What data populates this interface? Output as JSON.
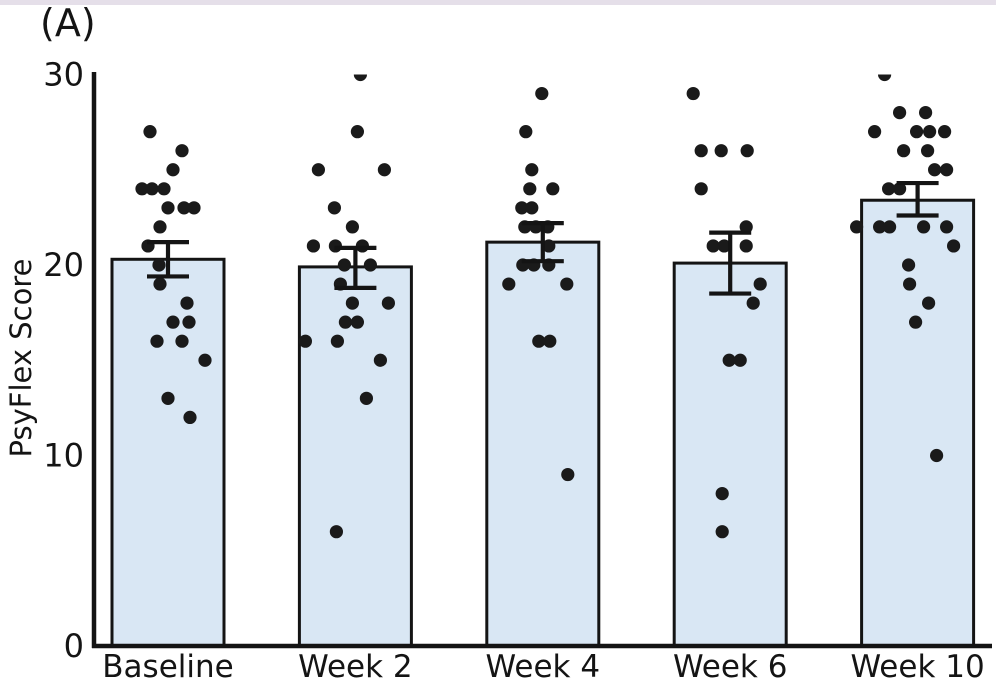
{
  "page": {
    "panel_label": "(A)"
  },
  "colors": {
    "bar_fill": "#d9e7f4",
    "bar_edge": "#141414",
    "dot": "#1a1a1a",
    "axis": "#141414",
    "text": "#141414",
    "top_strip": "#e5dfe9"
  },
  "chart_data": {
    "type": "bar",
    "subtype": "bar-with-jittered-scatter-and-error-bars",
    "title": "",
    "panel_label": "(A)",
    "xlabel": "",
    "ylabel": "PsyFlex Score",
    "ylim": [
      0,
      30
    ],
    "yticks": [
      "0",
      "10",
      "20",
      "30"
    ],
    "ytick_values": [
      0,
      10,
      20,
      30
    ],
    "grid": false,
    "legend": "none",
    "categories": [
      "Baseline",
      "Week 2",
      "Week 4",
      "Week 6",
      "Week 10"
    ],
    "series": [
      {
        "name": "mean",
        "values": [
          20.3,
          19.9,
          21.2,
          20.1,
          23.4
        ]
      }
    ],
    "error_bars": [
      {
        "lower": 19.4,
        "upper": 21.2
      },
      {
        "lower": 18.8,
        "upper": 20.9
      },
      {
        "lower": 20.2,
        "upper": 22.2
      },
      {
        "lower": 18.5,
        "upper": 21.7
      },
      {
        "lower": 22.6,
        "upper": 24.3
      }
    ],
    "points": [
      {
        "group": "Baseline",
        "pts": [
          [
            -18,
            27
          ],
          [
            14,
            26
          ],
          [
            5,
            25
          ],
          [
            -26,
            24
          ],
          [
            -16,
            24
          ],
          [
            -4,
            24
          ],
          [
            0,
            23
          ],
          [
            16,
            23
          ],
          [
            26,
            23
          ],
          [
            -8,
            22
          ],
          [
            -20,
            21
          ],
          [
            -9,
            20
          ],
          [
            -8,
            19
          ],
          [
            19,
            18
          ],
          [
            5,
            17
          ],
          [
            21,
            17
          ],
          [
            -11,
            16
          ],
          [
            14,
            16
          ],
          [
            37,
            15
          ],
          [
            0,
            13
          ],
          [
            22,
            12
          ]
        ]
      },
      {
        "group": "Week 2",
        "pts": [
          [
            5,
            30
          ],
          [
            2,
            27
          ],
          [
            -37,
            25
          ],
          [
            29,
            25
          ],
          [
            -21,
            23
          ],
          [
            -3,
            22
          ],
          [
            -42,
            21
          ],
          [
            -20,
            21
          ],
          [
            7,
            21
          ],
          [
            -11,
            20
          ],
          [
            15,
            20
          ],
          [
            -15,
            19
          ],
          [
            -3,
            18
          ],
          [
            33,
            18
          ],
          [
            -10,
            17
          ],
          [
            2,
            17
          ],
          [
            -50,
            16
          ],
          [
            -18,
            16
          ],
          [
            25,
            15
          ],
          [
            11,
            13
          ],
          [
            -19,
            6
          ]
        ]
      },
      {
        "group": "Week 4",
        "pts": [
          [
            -1,
            29
          ],
          [
            -17,
            27
          ],
          [
            -11,
            25
          ],
          [
            -13,
            24
          ],
          [
            10,
            24
          ],
          [
            -21,
            23
          ],
          [
            -11,
            23
          ],
          [
            -18,
            22
          ],
          [
            -7,
            22
          ],
          [
            5,
            22
          ],
          [
            6,
            21
          ],
          [
            -20,
            20
          ],
          [
            -9,
            20
          ],
          [
            6,
            20
          ],
          [
            -34,
            19
          ],
          [
            24,
            19
          ],
          [
            -4,
            16
          ],
          [
            7,
            16
          ],
          [
            25,
            9
          ]
        ]
      },
      {
        "group": "Week 6",
        "pts": [
          [
            -37,
            29
          ],
          [
            -29,
            26
          ],
          [
            -9,
            26
          ],
          [
            17,
            26
          ],
          [
            -29,
            24
          ],
          [
            16,
            22
          ],
          [
            -17,
            21
          ],
          [
            -6,
            21
          ],
          [
            16,
            21
          ],
          [
            30,
            19
          ],
          [
            23,
            18
          ],
          [
            -1,
            15
          ],
          [
            10,
            15
          ],
          [
            -8,
            8
          ],
          [
            -8,
            6
          ]
        ]
      },
      {
        "group": "Week 10",
        "pts": [
          [
            -33,
            30
          ],
          [
            -18,
            28
          ],
          [
            8,
            28
          ],
          [
            -43,
            27
          ],
          [
            -1,
            27
          ],
          [
            12,
            27
          ],
          [
            27,
            27
          ],
          [
            -14,
            26
          ],
          [
            10,
            26
          ],
          [
            17,
            25
          ],
          [
            29,
            25
          ],
          [
            -29,
            24
          ],
          [
            -18,
            24
          ],
          [
            -61,
            22
          ],
          [
            -38,
            22
          ],
          [
            -28,
            22
          ],
          [
            6,
            22
          ],
          [
            29,
            22
          ],
          [
            36,
            21
          ],
          [
            -9,
            20
          ],
          [
            -8,
            19
          ],
          [
            11,
            18
          ],
          [
            -2,
            17
          ],
          [
            19,
            10
          ]
        ]
      }
    ]
  }
}
